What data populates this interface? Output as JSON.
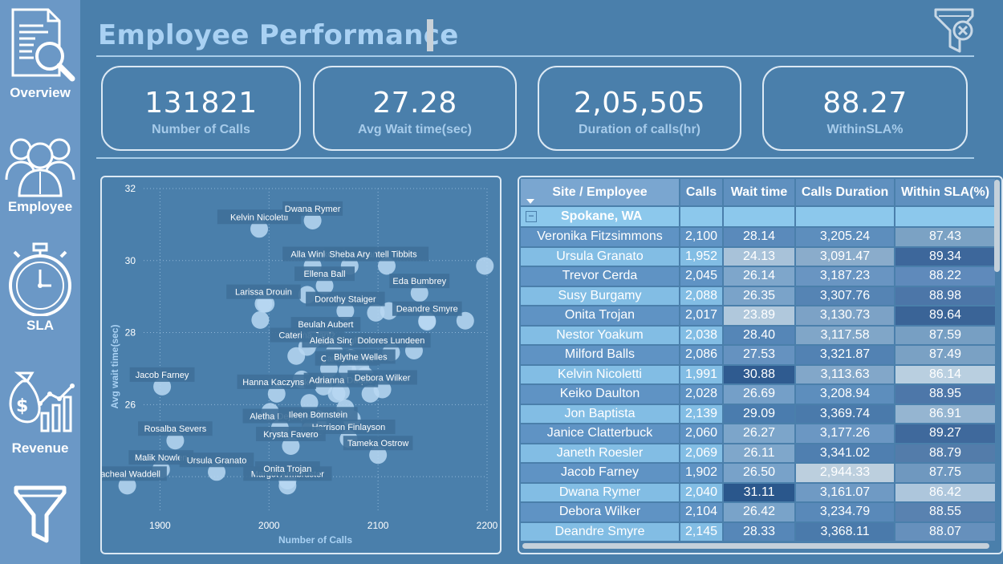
{
  "page": {
    "title": "Employee Performance",
    "colors": {
      "background": "#4a7fab",
      "sidebar": "#6b98c6",
      "title": "#a9d1f3",
      "accent_line": "#a9cde9"
    }
  },
  "sidebar": {
    "items": [
      {
        "label": "Overview",
        "icon": "document-search-icon"
      },
      {
        "label": "Employee",
        "icon": "people-icon"
      },
      {
        "label": "SLA",
        "icon": "stopwatch-icon"
      },
      {
        "label": "Revenue",
        "icon": "money-bag-chart-icon"
      },
      {
        "label": "",
        "icon": "funnel-icon"
      }
    ]
  },
  "header": {
    "clear_filters_icon": "clear-filter-icon"
  },
  "kpis": [
    {
      "value": "131821",
      "caption": "Number of Calls"
    },
    {
      "value": "27.28",
      "caption": "Avg Wait time(sec)"
    },
    {
      "value": "2,05,505",
      "caption": "Duration of calls(hr)"
    },
    {
      "value": "88.27",
      "caption": "WithinSLA%"
    }
  ],
  "chart_data": {
    "type": "scatter",
    "xlabel": "Number of Calls",
    "ylabel": "Avg wait time(sec)",
    "xlim": [
      1885,
      2200
    ],
    "ylim": [
      23.0,
      32.0
    ],
    "x_ticks": [
      1900,
      2000,
      2100,
      2200
    ],
    "y_ticks": [
      24,
      26,
      28,
      30,
      32
    ],
    "grid": true,
    "point_color": "#b8d8f2",
    "labeled_points": [
      {
        "name": "Kelvin Nicoletti",
        "x": 1991,
        "y": 30.88
      },
      {
        "name": "Dwana Rymer",
        "x": 2040,
        "y": 31.11
      },
      {
        "name": "Alla Winkel",
        "x": 2040,
        "y": 29.85
      },
      {
        "name": "Ellena Ball",
        "x": 2051,
        "y": 29.3
      },
      {
        "name": "Chantell Tibbits",
        "x": 2108,
        "y": 29.85
      },
      {
        "name": "Sheba Ary",
        "x": 2074,
        "y": 29.85
      },
      {
        "name": "Eda Bumbrey",
        "x": 2138,
        "y": 29.1
      },
      {
        "name": "Larissa Drouin",
        "x": 1995,
        "y": 28.8
      },
      {
        "name": "Deandre Smyre",
        "x": 2145,
        "y": 28.33
      },
      {
        "name": "Dorothy Staiger",
        "x": 2070,
        "y": 28.6
      },
      {
        "name": "Beulah Aubert",
        "x": 2052,
        "y": 27.9
      },
      {
        "name": "Caterina Jantz",
        "x": 2035,
        "y": 27.6
      },
      {
        "name": "Aleida Singh",
        "x": 2060,
        "y": 27.45
      },
      {
        "name": "Dolores Lundeen",
        "x": 2112,
        "y": 27.45
      },
      {
        "name": "Carley Askew",
        "x": 2072,
        "y": 26.95
      },
      {
        "name": "Blythe Welles",
        "x": 2084,
        "y": 27.0
      },
      {
        "name": "Hanna Kaczynski",
        "x": 2007,
        "y": 26.3
      },
      {
        "name": "Adrianna Duque",
        "x": 2066,
        "y": 26.35
      },
      {
        "name": "Debora Wilker",
        "x": 2104,
        "y": 26.42
      },
      {
        "name": "Jacob Farney",
        "x": 1902,
        "y": 26.5
      },
      {
        "name": "Aletha Dejonge",
        "x": 2010,
        "y": 25.35
      },
      {
        "name": "Ileen Bornstein",
        "x": 2045,
        "y": 25.4
      },
      {
        "name": "Rosalba Severs",
        "x": 1914,
        "y": 25.0
      },
      {
        "name": "Harrison Finlayson",
        "x": 2073,
        "y": 25.05
      },
      {
        "name": "Krysta Favero",
        "x": 2020,
        "y": 24.85
      },
      {
        "name": "Tameka Ostrow",
        "x": 2100,
        "y": 24.6
      },
      {
        "name": "Malik Nowlen",
        "x": 1901,
        "y": 24.2
      },
      {
        "name": "Ursula Granato",
        "x": 1952,
        "y": 24.13
      },
      {
        "name": "Margot Armbruster",
        "x": 2017,
        "y": 23.75
      },
      {
        "name": "Racheal Waddell",
        "x": 1870,
        "y": 23.75
      },
      {
        "name": "Onita Trojan",
        "x": 2017,
        "y": 23.89
      }
    ],
    "unlabeled_points": [
      {
        "x": 2198,
        "y": 29.85
      },
      {
        "x": 2180,
        "y": 28.33
      },
      {
        "x": 2145,
        "y": 28.3
      },
      {
        "x": 2110,
        "y": 28.6
      },
      {
        "x": 2098,
        "y": 28.55
      },
      {
        "x": 1997,
        "y": 28.8
      },
      {
        "x": 2035,
        "y": 29.05
      },
      {
        "x": 1992,
        "y": 28.35
      },
      {
        "x": 2025,
        "y": 27.35
      },
      {
        "x": 2040,
        "y": 27.8
      },
      {
        "x": 2075,
        "y": 27.3
      },
      {
        "x": 2133,
        "y": 27.5
      },
      {
        "x": 2055,
        "y": 27.0
      },
      {
        "x": 2030,
        "y": 26.7
      },
      {
        "x": 2050,
        "y": 26.5
      },
      {
        "x": 2088,
        "y": 26.8
      },
      {
        "x": 2062,
        "y": 26.3
      },
      {
        "x": 2037,
        "y": 26.05
      },
      {
        "x": 2045,
        "y": 25.6
      },
      {
        "x": 2038,
        "y": 25.3
      },
      {
        "x": 2070,
        "y": 25.9
      },
      {
        "x": 2001,
        "y": 25.8
      },
      {
        "x": 2076,
        "y": 25.6
      },
      {
        "x": 2093,
        "y": 26.3
      }
    ]
  },
  "table": {
    "columns": [
      "Site / Employee",
      "Calls",
      "Wait time",
      "Calls Duration",
      "Within SLA(%)"
    ],
    "group": "Spokane, WA",
    "rows": [
      {
        "name": "Veronika Fitzsimmons",
        "calls": "2,100",
        "wait": "28.14",
        "duration": "3,205.24",
        "sla": "87.43",
        "wait_bg": "#5a8abb",
        "dur_bg": "#5d8ebd",
        "sla_bg": "#7ba2c4"
      },
      {
        "name": "Ursula Granato",
        "calls": "1,952",
        "wait": "24.13",
        "duration": "3,091.47",
        "sla": "89.34",
        "wait_bg": "#a8c2d9",
        "dur_bg": "#8aaccb",
        "sla_bg": "#3d679b"
      },
      {
        "name": "Trevor Cerda",
        "calls": "2,045",
        "wait": "26.14",
        "duration": "3,187.23",
        "sla": "88.22",
        "wait_bg": "#7ea6cb",
        "dur_bg": "#6995c2",
        "sla_bg": "#5f8abb"
      },
      {
        "name": "Susy Burgamy",
        "calls": "2,088",
        "wait": "26.35",
        "duration": "3,307.76",
        "sla": "88.98",
        "wait_bg": "#7aa3c9",
        "dur_bg": "#5584b4",
        "sla_bg": "#4c76a8"
      },
      {
        "name": "Onita Trojan",
        "calls": "2,017",
        "wait": "23.89",
        "duration": "3,130.73",
        "sla": "89.64",
        "wait_bg": "#b0c8dc",
        "dur_bg": "#7ca2c6",
        "sla_bg": "#3a6497"
      },
      {
        "name": "Nestor Yoakum",
        "calls": "2,038",
        "wait": "28.40",
        "duration": "3,117.58",
        "sla": "87.59",
        "wait_bg": "#5586b7",
        "dur_bg": "#80a6c8",
        "sla_bg": "#779fc3"
      },
      {
        "name": "Milford Balls",
        "calls": "2,086",
        "wait": "27.53",
        "duration": "3,321.87",
        "sla": "87.49",
        "wait_bg": "#6592c0",
        "dur_bg": "#5282b3",
        "sla_bg": "#7aa1c4"
      },
      {
        "name": "Kelvin Nicoletti",
        "calls": "1,991",
        "wait": "30.88",
        "duration": "3,113.63",
        "sla": "86.14",
        "wait_bg": "#2f5b90",
        "dur_bg": "#82a7c9",
        "sla_bg": "#b9cfe0"
      },
      {
        "name": "Keiko Daulton",
        "calls": "2,028",
        "wait": "26.69",
        "duration": "3,208.94",
        "sla": "88.95",
        "wait_bg": "#749fc8",
        "dur_bg": "#5d8ebd",
        "sla_bg": "#4d77a9"
      },
      {
        "name": "Jon Baptista",
        "calls": "2,139",
        "wait": "29.09",
        "duration": "3,369.74",
        "sla": "86.91",
        "wait_bg": "#4a7cae",
        "dur_bg": "#4a7aab",
        "sla_bg": "#95b5d1"
      },
      {
        "name": "Janice Clatterbuck",
        "calls": "2,060",
        "wait": "26.27",
        "duration": "3,177.26",
        "sla": "89.27",
        "wait_bg": "#7ca5ca",
        "dur_bg": "#6b97c3",
        "sla_bg": "#3f699c"
      },
      {
        "name": "Janeth Roesler",
        "calls": "2,069",
        "wait": "26.11",
        "duration": "3,341.02",
        "sla": "88.79",
        "wait_bg": "#7fa7cb",
        "dur_bg": "#4f7fb0",
        "sla_bg": "#537caa"
      },
      {
        "name": "Jacob Farney",
        "calls": "1,902",
        "wait": "26.50",
        "duration": "2,944.33",
        "sla": "87.75",
        "wait_bg": "#78a2c9",
        "dur_bg": "#bccfde",
        "sla_bg": "#6f98bf"
      },
      {
        "name": "Dwana Rymer",
        "calls": "2,040",
        "wait": "31.11",
        "duration": "3,161.07",
        "sla": "86.42",
        "wait_bg": "#2a578c",
        "dur_bg": "#6f9ac4",
        "sla_bg": "#adc6dc"
      },
      {
        "name": "Debora Wilker",
        "calls": "2,104",
        "wait": "26.42",
        "duration": "3,234.79",
        "sla": "88.55",
        "wait_bg": "#79a3c9",
        "dur_bg": "#5989b9",
        "sla_bg": "#5982b0"
      },
      {
        "name": "Deandre Smyre",
        "calls": "2,145",
        "wait": "28.33",
        "duration": "3,368.11",
        "sla": "88.07",
        "wait_bg": "#5687b8",
        "dur_bg": "#4a7aab",
        "sla_bg": "#6690bc"
      }
    ]
  }
}
